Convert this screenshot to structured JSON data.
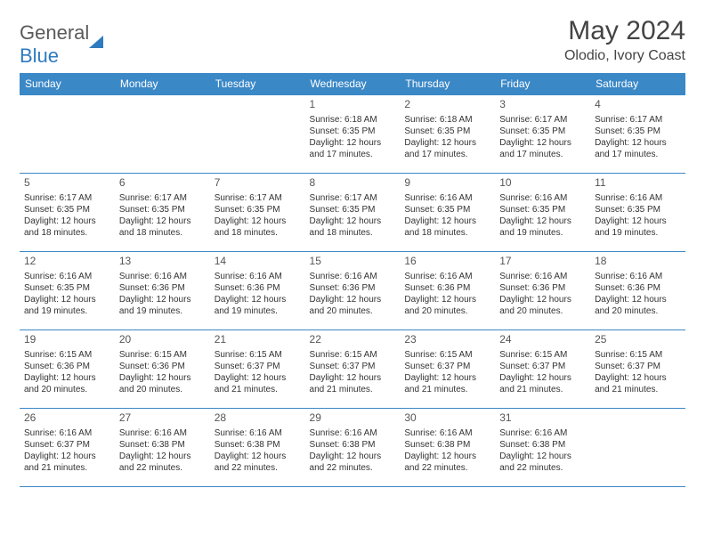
{
  "brand": {
    "general": "General",
    "blue": "Blue"
  },
  "title": "May 2024",
  "location": "Olodio, Ivory Coast",
  "colors": {
    "header_bg": "#3b88c7",
    "header_text": "#ffffff",
    "border": "#3b88c7",
    "text": "#333333",
    "logo_gray": "#5a5a5a",
    "logo_blue": "#2f7bbf"
  },
  "days_of_week": [
    "Sunday",
    "Monday",
    "Tuesday",
    "Wednesday",
    "Thursday",
    "Friday",
    "Saturday"
  ],
  "weeks": [
    [
      null,
      null,
      null,
      {
        "n": "1",
        "sunrise": "Sunrise: 6:18 AM",
        "sunset": "Sunset: 6:35 PM",
        "daylight": "Daylight: 12 hours and 17 minutes."
      },
      {
        "n": "2",
        "sunrise": "Sunrise: 6:18 AM",
        "sunset": "Sunset: 6:35 PM",
        "daylight": "Daylight: 12 hours and 17 minutes."
      },
      {
        "n": "3",
        "sunrise": "Sunrise: 6:17 AM",
        "sunset": "Sunset: 6:35 PM",
        "daylight": "Daylight: 12 hours and 17 minutes."
      },
      {
        "n": "4",
        "sunrise": "Sunrise: 6:17 AM",
        "sunset": "Sunset: 6:35 PM",
        "daylight": "Daylight: 12 hours and 17 minutes."
      }
    ],
    [
      {
        "n": "5",
        "sunrise": "Sunrise: 6:17 AM",
        "sunset": "Sunset: 6:35 PM",
        "daylight": "Daylight: 12 hours and 18 minutes."
      },
      {
        "n": "6",
        "sunrise": "Sunrise: 6:17 AM",
        "sunset": "Sunset: 6:35 PM",
        "daylight": "Daylight: 12 hours and 18 minutes."
      },
      {
        "n": "7",
        "sunrise": "Sunrise: 6:17 AM",
        "sunset": "Sunset: 6:35 PM",
        "daylight": "Daylight: 12 hours and 18 minutes."
      },
      {
        "n": "8",
        "sunrise": "Sunrise: 6:17 AM",
        "sunset": "Sunset: 6:35 PM",
        "daylight": "Daylight: 12 hours and 18 minutes."
      },
      {
        "n": "9",
        "sunrise": "Sunrise: 6:16 AM",
        "sunset": "Sunset: 6:35 PM",
        "daylight": "Daylight: 12 hours and 18 minutes."
      },
      {
        "n": "10",
        "sunrise": "Sunrise: 6:16 AM",
        "sunset": "Sunset: 6:35 PM",
        "daylight": "Daylight: 12 hours and 19 minutes."
      },
      {
        "n": "11",
        "sunrise": "Sunrise: 6:16 AM",
        "sunset": "Sunset: 6:35 PM",
        "daylight": "Daylight: 12 hours and 19 minutes."
      }
    ],
    [
      {
        "n": "12",
        "sunrise": "Sunrise: 6:16 AM",
        "sunset": "Sunset: 6:35 PM",
        "daylight": "Daylight: 12 hours and 19 minutes."
      },
      {
        "n": "13",
        "sunrise": "Sunrise: 6:16 AM",
        "sunset": "Sunset: 6:36 PM",
        "daylight": "Daylight: 12 hours and 19 minutes."
      },
      {
        "n": "14",
        "sunrise": "Sunrise: 6:16 AM",
        "sunset": "Sunset: 6:36 PM",
        "daylight": "Daylight: 12 hours and 19 minutes."
      },
      {
        "n": "15",
        "sunrise": "Sunrise: 6:16 AM",
        "sunset": "Sunset: 6:36 PM",
        "daylight": "Daylight: 12 hours and 20 minutes."
      },
      {
        "n": "16",
        "sunrise": "Sunrise: 6:16 AM",
        "sunset": "Sunset: 6:36 PM",
        "daylight": "Daylight: 12 hours and 20 minutes."
      },
      {
        "n": "17",
        "sunrise": "Sunrise: 6:16 AM",
        "sunset": "Sunset: 6:36 PM",
        "daylight": "Daylight: 12 hours and 20 minutes."
      },
      {
        "n": "18",
        "sunrise": "Sunrise: 6:16 AM",
        "sunset": "Sunset: 6:36 PM",
        "daylight": "Daylight: 12 hours and 20 minutes."
      }
    ],
    [
      {
        "n": "19",
        "sunrise": "Sunrise: 6:15 AM",
        "sunset": "Sunset: 6:36 PM",
        "daylight": "Daylight: 12 hours and 20 minutes."
      },
      {
        "n": "20",
        "sunrise": "Sunrise: 6:15 AM",
        "sunset": "Sunset: 6:36 PM",
        "daylight": "Daylight: 12 hours and 20 minutes."
      },
      {
        "n": "21",
        "sunrise": "Sunrise: 6:15 AM",
        "sunset": "Sunset: 6:37 PM",
        "daylight": "Daylight: 12 hours and 21 minutes."
      },
      {
        "n": "22",
        "sunrise": "Sunrise: 6:15 AM",
        "sunset": "Sunset: 6:37 PM",
        "daylight": "Daylight: 12 hours and 21 minutes."
      },
      {
        "n": "23",
        "sunrise": "Sunrise: 6:15 AM",
        "sunset": "Sunset: 6:37 PM",
        "daylight": "Daylight: 12 hours and 21 minutes."
      },
      {
        "n": "24",
        "sunrise": "Sunrise: 6:15 AM",
        "sunset": "Sunset: 6:37 PM",
        "daylight": "Daylight: 12 hours and 21 minutes."
      },
      {
        "n": "25",
        "sunrise": "Sunrise: 6:15 AM",
        "sunset": "Sunset: 6:37 PM",
        "daylight": "Daylight: 12 hours and 21 minutes."
      }
    ],
    [
      {
        "n": "26",
        "sunrise": "Sunrise: 6:16 AM",
        "sunset": "Sunset: 6:37 PM",
        "daylight": "Daylight: 12 hours and 21 minutes."
      },
      {
        "n": "27",
        "sunrise": "Sunrise: 6:16 AM",
        "sunset": "Sunset: 6:38 PM",
        "daylight": "Daylight: 12 hours and 22 minutes."
      },
      {
        "n": "28",
        "sunrise": "Sunrise: 6:16 AM",
        "sunset": "Sunset: 6:38 PM",
        "daylight": "Daylight: 12 hours and 22 minutes."
      },
      {
        "n": "29",
        "sunrise": "Sunrise: 6:16 AM",
        "sunset": "Sunset: 6:38 PM",
        "daylight": "Daylight: 12 hours and 22 minutes."
      },
      {
        "n": "30",
        "sunrise": "Sunrise: 6:16 AM",
        "sunset": "Sunset: 6:38 PM",
        "daylight": "Daylight: 12 hours and 22 minutes."
      },
      {
        "n": "31",
        "sunrise": "Sunrise: 6:16 AM",
        "sunset": "Sunset: 6:38 PM",
        "daylight": "Daylight: 12 hours and 22 minutes."
      },
      null
    ]
  ]
}
